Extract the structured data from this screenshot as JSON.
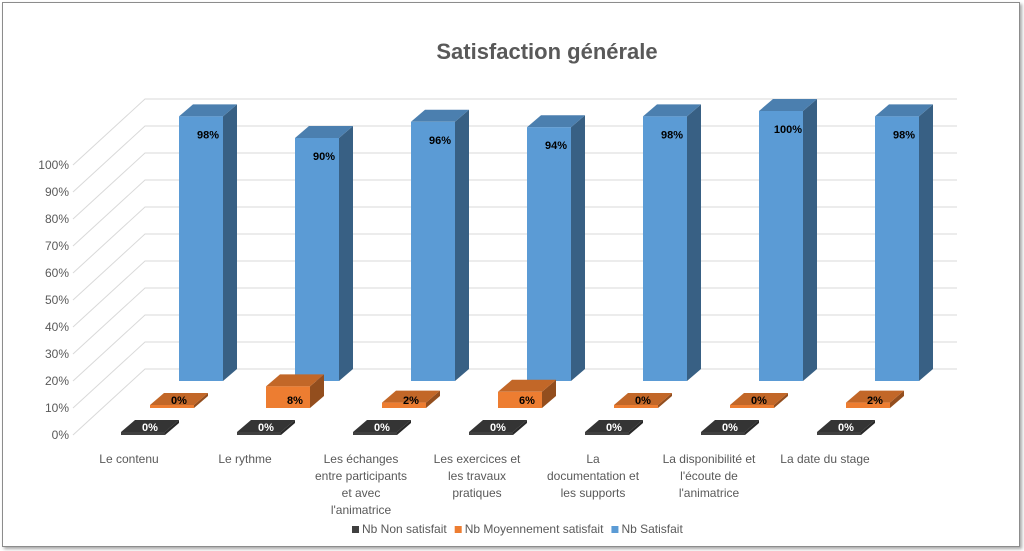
{
  "chart_data": {
    "type": "bar",
    "title": "Satisfaction générale",
    "categories": [
      [
        "Le contenu"
      ],
      [
        "Le rythme"
      ],
      [
        "Les échanges",
        "entre participants",
        "et avec",
        "l'animatrice"
      ],
      [
        "Les exercices et",
        "les travaux",
        "pratiques"
      ],
      [
        "La",
        "documentation et",
        "les supports"
      ],
      [
        "La disponibilité et",
        "l'écoute de",
        "l'animatrice"
      ],
      [
        "La date du stage"
      ]
    ],
    "series": [
      {
        "name": "Nb Non satisfait",
        "color": "#404040",
        "values": [
          0,
          0,
          0,
          0,
          0,
          0,
          0
        ],
        "labels": [
          "0%",
          "0%",
          "0%",
          "0%",
          "0%",
          "0%",
          "0%"
        ]
      },
      {
        "name": "Nb Moyennement satisfait",
        "color": "#ED7D31",
        "values": [
          0,
          8,
          2,
          6,
          0,
          0,
          2
        ],
        "labels": [
          "0%",
          "8%",
          "2%",
          "6%",
          "0%",
          "0%",
          "2%"
        ]
      },
      {
        "name": "Nb Satisfait",
        "color": "#5B9BD5",
        "values": [
          98,
          90,
          96,
          94,
          98,
          100,
          98
        ],
        "labels": [
          "98%",
          "90%",
          "96%",
          "94%",
          "98%",
          "100%",
          "98%"
        ]
      }
    ],
    "yticks": [
      "0%",
      "10%",
      "20%",
      "30%",
      "40%",
      "50%",
      "60%",
      "70%",
      "80%",
      "90%",
      "100%"
    ],
    "ylim": [
      0,
      100
    ],
    "projection": "3d-column",
    "grid": true,
    "legend": "bottom"
  }
}
